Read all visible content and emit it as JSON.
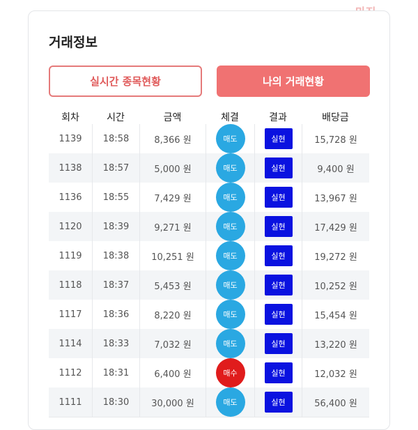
{
  "logo": "마진",
  "header": {
    "title": "거래정보"
  },
  "tabs": [
    "실시간 종목현황",
    "나의 거래현황"
  ],
  "table": {
    "columns": [
      "회차",
      "시간",
      "금액",
      "체결",
      "결과",
      "배당금"
    ],
    "rows": [
      [
        "1139",
        "18:58",
        "8,366 원",
        "매도",
        "실현",
        "15,728 원"
      ],
      [
        "1138",
        "18:57",
        "5,000 원",
        "매도",
        "실현",
        "9,400 원"
      ],
      [
        "1136",
        "18:55",
        "7,429 원",
        "매도",
        "실현",
        "13,967 원"
      ],
      [
        "1120",
        "18:39",
        "9,271 원",
        "매도",
        "실현",
        "17,429 원"
      ],
      [
        "1119",
        "18:38",
        "10,251 원",
        "매도",
        "실현",
        "19,272 원"
      ],
      [
        "1118",
        "18:37",
        "5,453 원",
        "매도",
        "실현",
        "10,252 원"
      ],
      [
        "1117",
        "18:36",
        "8,220 원",
        "매도",
        "실현",
        "15,454 원"
      ],
      [
        "1114",
        "18:33",
        "7,032 원",
        "매도",
        "실현",
        "13,220 원"
      ],
      [
        "1112",
        "18:31",
        "6,400 원",
        "매수",
        "실현",
        "12,032 원"
      ],
      [
        "1111",
        "18:30",
        "30,000 원",
        "매도",
        "실현",
        "56,400 원"
      ]
    ]
  }
}
